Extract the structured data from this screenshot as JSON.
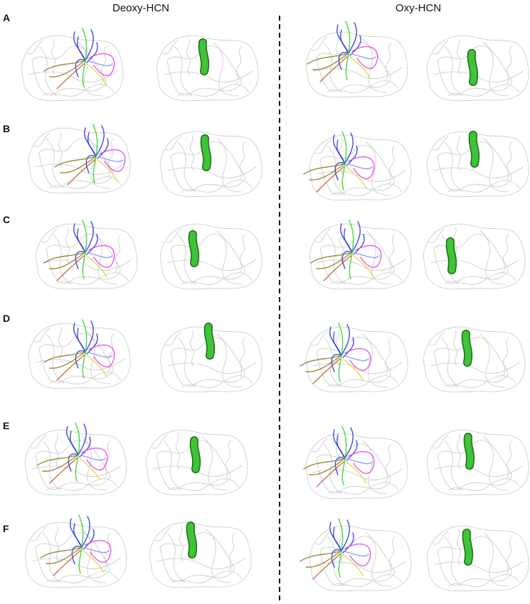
{
  "columns": [
    "Deoxy-HCN",
    "Oxy-HCN"
  ],
  "rows": [
    "A",
    "B",
    "C",
    "D",
    "E",
    "F"
  ]
}
